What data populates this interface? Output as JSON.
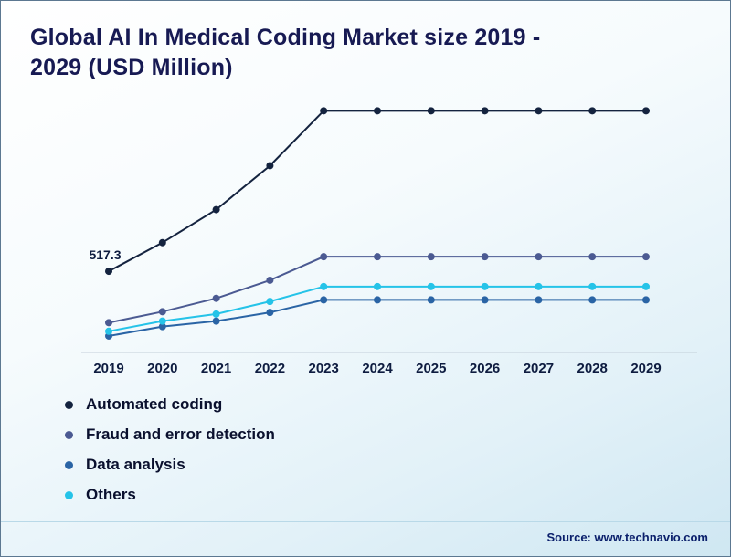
{
  "header": {
    "title": "Global AI In Medical Coding Market size 2019 - 2029 (USD Million)"
  },
  "footer": {
    "source": "Source: www.technavio.com"
  },
  "colors": {
    "title_text": "#171a53",
    "axis_label_text": "#0e1c40",
    "legend_text": "#0a102e",
    "source_text": "#0a1f6b"
  },
  "chart_data": {
    "type": "line",
    "title": "Global AI In Medical Coding Market size 2019 - 2029 (USD Million)",
    "categories": [
      "2019",
      "2020",
      "2021",
      "2022",
      "2023",
      "2024",
      "2025",
      "2026",
      "2027",
      "2028",
      "2029"
    ],
    "xlabel": "",
    "ylabel": "USD Million",
    "ylim": [
      0,
      1600
    ],
    "grid": false,
    "legend_position": "bottom-left",
    "annotations": [
      {
        "text": "517.3",
        "series": 0,
        "index": 0
      }
    ],
    "series": [
      {
        "name": "Automated coding",
        "color": "#14233f",
        "values": [
          517.3,
          700,
          910,
          1190,
          1540,
          1540,
          1540,
          1540,
          1540,
          1540,
          1540
        ]
      },
      {
        "name": "Fraud and error detection",
        "color": "#4b5a92",
        "values": [
          190,
          260,
          345,
          460,
          610,
          610,
          610,
          610,
          610,
          610,
          610
        ]
      },
      {
        "name": "Data analysis",
        "color": "#2a64a5",
        "values": [
          105,
          165,
          200,
          255,
          335,
          335,
          335,
          335,
          335,
          335,
          335
        ]
      },
      {
        "name": "Others",
        "color": "#25c3e8",
        "values": [
          135,
          200,
          245,
          325,
          420,
          420,
          420,
          420,
          420,
          420,
          420
        ]
      }
    ]
  }
}
